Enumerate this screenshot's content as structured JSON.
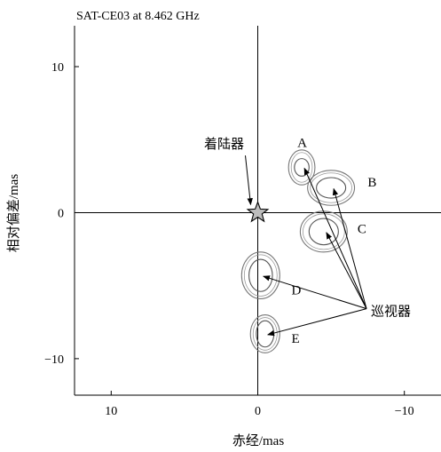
{
  "chart_data": {
    "type": "scatter",
    "title": "SAT-CE03 at 8.462 GHz",
    "xlabel": "赤经/mas",
    "ylabel": "相对偏差/mas",
    "xlim": [
      12.5,
      -12.5
    ],
    "ylim": [
      -12.5,
      12.8
    ],
    "x_direction": "reversed",
    "xticks": [
      {
        "value": 10,
        "label": "10"
      },
      {
        "value": 0,
        "label": "0"
      },
      {
        "value": -10,
        "label": "−10"
      }
    ],
    "yticks": [
      {
        "value": 10,
        "label": "10"
      },
      {
        "value": 0,
        "label": "0"
      },
      {
        "value": -10,
        "label": "−10"
      }
    ],
    "grid": false,
    "lander": {
      "label": "着陆器",
      "x": 0,
      "y": 0,
      "label_x": 2.3,
      "label_y": 4.4
    },
    "rover_label": {
      "text": "巡视器",
      "x": -7.6,
      "y": -6.7
    },
    "sources": [
      {
        "name": "A",
        "x": -3.0,
        "y": 3.1,
        "rx_in": 0.5,
        "ry_in": 0.6,
        "rx_out": 0.9,
        "ry_out": 1.2,
        "label_x": -2.7,
        "label_y": 4.5
      },
      {
        "name": "B",
        "x": -5.0,
        "y": 1.7,
        "rx_in": 1.0,
        "ry_in": 0.7,
        "rx_out": 1.6,
        "ry_out": 1.2,
        "label_x": -7.5,
        "label_y": 1.8
      },
      {
        "name": "C",
        "x": -4.5,
        "y": -1.3,
        "rx_in": 1.0,
        "ry_in": 0.9,
        "rx_out": 1.6,
        "ry_out": 1.4,
        "label_x": -6.8,
        "label_y": -1.4
      },
      {
        "name": "D",
        "x": -0.2,
        "y": -4.3,
        "rx_in": 0.8,
        "ry_in": 1.1,
        "rx_out": 1.3,
        "ry_out": 1.6,
        "label_x": -2.3,
        "label_y": -5.6
      },
      {
        "name": "E",
        "x": -0.5,
        "y": -8.3,
        "rx_in": 0.6,
        "ry_in": 0.9,
        "rx_out": 1.0,
        "ry_out": 1.3,
        "label_x": -2.3,
        "label_y": -8.9
      }
    ]
  }
}
